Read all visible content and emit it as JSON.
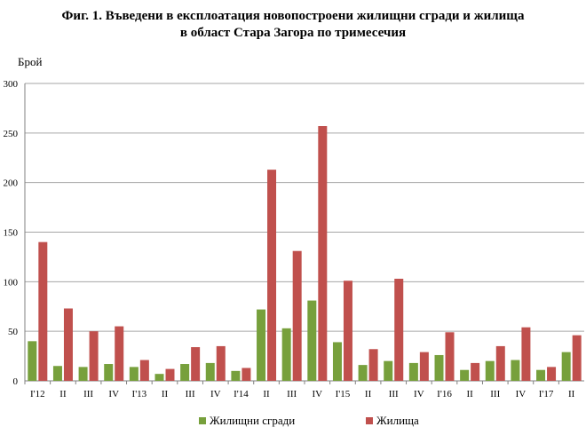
{
  "title": {
    "line1": "Фиг. 1.   Въведени в експлоатация новопостроени жилищни сгради и жилища",
    "line2": "в област Стара Загора по тримесечия"
  },
  "chart_data": {
    "type": "bar",
    "ylabel": "Брой",
    "xlabel": "",
    "ylim": [
      0,
      300
    ],
    "yticks": [
      0,
      50,
      100,
      150,
      200,
      250,
      300
    ],
    "grid": true,
    "legend_position": "bottom",
    "categories": [
      "I'12",
      "II",
      "III",
      "IV",
      "I'13",
      "II",
      "III",
      "IV",
      "I'14",
      "II",
      "III",
      "IV",
      "I'15",
      "II",
      "III",
      "IV",
      "I'16",
      "II",
      "III",
      "IV",
      "I'17",
      "II"
    ],
    "series": [
      {
        "name": "Жилищни сгради",
        "color": "#77a03c",
        "values": [
          40,
          15,
          14,
          17,
          14,
          7,
          17,
          18,
          10,
          72,
          53,
          81,
          39,
          16,
          20,
          18,
          26,
          11,
          20,
          21,
          11,
          29
        ]
      },
      {
        "name": "Жилища",
        "color": "#c0504d",
        "values": [
          140,
          73,
          50,
          55,
          21,
          12,
          34,
          35,
          13,
          213,
          131,
          257,
          101,
          32,
          103,
          29,
          49,
          18,
          35,
          54,
          14,
          46
        ]
      }
    ]
  }
}
